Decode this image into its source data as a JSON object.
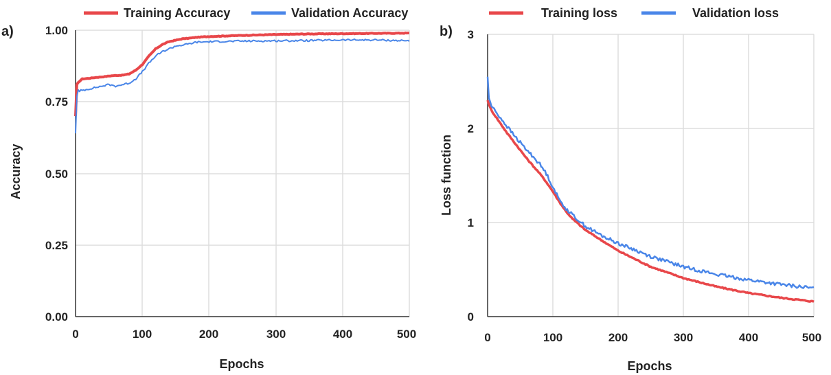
{
  "chart_data": [
    {
      "type": "line",
      "panel_label": "a)",
      "xlabel": "Epochs",
      "ylabel": "Accuracy",
      "xlim": [
        0,
        500
      ],
      "ylim": [
        0,
        1
      ],
      "xticks": [
        0,
        100,
        200,
        300,
        400,
        500
      ],
      "yticks": [
        "0.00",
        "0.25",
        "0.50",
        "0.75",
        "1.00"
      ],
      "ytick_values": [
        0,
        0.25,
        0.5,
        0.75,
        1.0
      ],
      "grid": true,
      "legend_position": "top",
      "series": [
        {
          "name": "Training Accuracy",
          "color": "#e8474a",
          "x": [
            0,
            2,
            5,
            10,
            20,
            30,
            40,
            50,
            60,
            70,
            80,
            90,
            100,
            110,
            120,
            130,
            140,
            150,
            160,
            170,
            180,
            200,
            250,
            300,
            350,
            400,
            450,
            500
          ],
          "y": [
            0.7,
            0.81,
            0.82,
            0.83,
            0.832,
            0.835,
            0.837,
            0.84,
            0.842,
            0.843,
            0.847,
            0.86,
            0.88,
            0.91,
            0.935,
            0.95,
            0.96,
            0.965,
            0.97,
            0.972,
            0.975,
            0.978,
            0.982,
            0.985,
            0.987,
            0.988,
            0.989,
            0.99
          ]
        },
        {
          "name": "Validation Accuracy",
          "color": "#4a86e8",
          "x": [
            0,
            1,
            3,
            5,
            7,
            10,
            20,
            30,
            40,
            50,
            60,
            70,
            80,
            90,
            100,
            110,
            120,
            130,
            140,
            150,
            160,
            170,
            180,
            200,
            250,
            300,
            350,
            400,
            450,
            500
          ],
          "y": [
            0.64,
            0.74,
            0.8,
            0.78,
            0.79,
            0.79,
            0.795,
            0.8,
            0.805,
            0.81,
            0.805,
            0.81,
            0.815,
            0.83,
            0.855,
            0.885,
            0.91,
            0.925,
            0.935,
            0.945,
            0.948,
            0.952,
            0.958,
            0.96,
            0.962,
            0.963,
            0.964,
            0.966,
            0.966,
            0.963
          ]
        }
      ]
    },
    {
      "type": "line",
      "panel_label": "b)",
      "xlabel": "Epochs",
      "ylabel": "Loss function",
      "xlim": [
        0,
        500
      ],
      "ylim": [
        0,
        3
      ],
      "xticks": [
        0,
        100,
        200,
        300,
        400,
        500
      ],
      "yticks": [
        "0",
        "1",
        "2",
        "3"
      ],
      "ytick_values": [
        0,
        1,
        2,
        3
      ],
      "grid": true,
      "legend_position": "top",
      "series": [
        {
          "name": "Training loss",
          "color": "#e8474a",
          "x": [
            0,
            5,
            10,
            20,
            30,
            40,
            50,
            60,
            70,
            80,
            90,
            100,
            110,
            120,
            130,
            140,
            150,
            175,
            200,
            250,
            300,
            350,
            400,
            450,
            500
          ],
          "y": [
            2.3,
            2.2,
            2.15,
            2.05,
            1.95,
            1.86,
            1.77,
            1.68,
            1.6,
            1.52,
            1.43,
            1.33,
            1.22,
            1.12,
            1.04,
            0.98,
            0.92,
            0.81,
            0.7,
            0.53,
            0.41,
            0.32,
            0.25,
            0.2,
            0.16
          ]
        },
        {
          "name": "Validation loss",
          "color": "#4a86e8",
          "x": [
            0,
            1,
            5,
            10,
            20,
            30,
            40,
            50,
            60,
            70,
            80,
            90,
            100,
            110,
            120,
            130,
            140,
            150,
            175,
            200,
            250,
            300,
            350,
            400,
            450,
            500
          ],
          "y": [
            2.55,
            2.35,
            2.25,
            2.2,
            2.11,
            2.02,
            1.93,
            1.85,
            1.77,
            1.7,
            1.62,
            1.52,
            1.38,
            1.24,
            1.15,
            1.08,
            1.02,
            0.96,
            0.86,
            0.78,
            0.64,
            0.53,
            0.45,
            0.39,
            0.34,
            0.3
          ]
        }
      ]
    }
  ]
}
